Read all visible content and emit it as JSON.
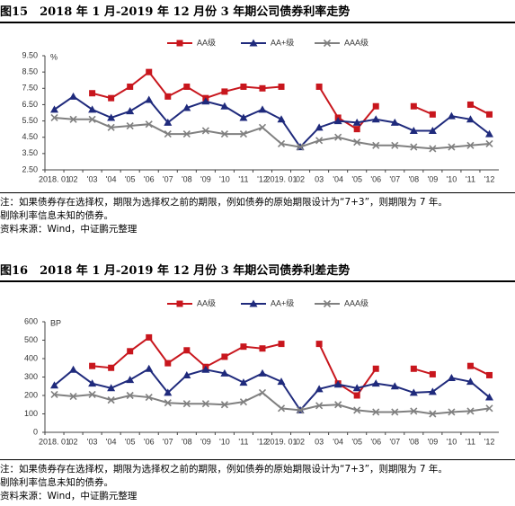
{
  "chart_data": [
    {
      "type": "line",
      "title": "图15　2018 年 1 月-2019 年 12 月份 3 年期公司债券利率走势",
      "unit": "%",
      "categories": [
        "2018. 01",
        "02",
        "'03",
        "'04",
        "'05",
        "'06",
        "'07",
        "'08",
        "'09",
        "'10",
        "'11",
        "'12",
        "2019. 01",
        "02",
        "03",
        "'04",
        "'05",
        "'06",
        "'07",
        "'08",
        "'09",
        "'10",
        "'11",
        "'12"
      ],
      "series": [
        {
          "name": "AA级",
          "color": "#c8161d",
          "marker": "square",
          "values": [
            null,
            null,
            7.2,
            6.9,
            7.6,
            8.5,
            7.0,
            7.6,
            6.9,
            7.3,
            7.6,
            7.5,
            7.6,
            null,
            7.6,
            5.7,
            5.0,
            6.4,
            null,
            6.4,
            5.9,
            null,
            6.5,
            5.9
          ]
        },
        {
          "name": "AA+级",
          "color": "#1f2a7c",
          "marker": "triangle",
          "values": [
            6.2,
            7.0,
            6.2,
            5.7,
            6.1,
            6.8,
            5.4,
            6.3,
            6.7,
            6.4,
            5.7,
            6.2,
            5.6,
            3.9,
            5.1,
            5.5,
            5.4,
            5.6,
            5.4,
            4.9,
            4.9,
            5.8,
            5.6,
            4.7
          ]
        },
        {
          "name": "AAA级",
          "color": "#808080",
          "marker": "x",
          "values": [
            5.7,
            5.6,
            5.6,
            5.1,
            5.2,
            5.3,
            4.7,
            4.7,
            4.9,
            4.7,
            4.7,
            5.1,
            4.1,
            3.9,
            4.3,
            4.5,
            4.2,
            4.0,
            4.0,
            3.9,
            3.8,
            3.9,
            4.0,
            4.1
          ]
        }
      ],
      "ylim": [
        2.5,
        9.5
      ],
      "yticks": [
        {
          "value": 2.5,
          "label": "2.50"
        },
        {
          "value": 3.5,
          "label": "3.50"
        },
        {
          "value": 4.5,
          "label": "4.50"
        },
        {
          "value": 5.5,
          "label": "5.50"
        },
        {
          "value": 6.5,
          "label": "6.50"
        },
        {
          "value": 7.5,
          "label": "7.50"
        },
        {
          "value": 8.5,
          "label": "8.50"
        },
        {
          "value": 9.5,
          "label": "9.50"
        }
      ],
      "grid": false,
      "legend": "top",
      "note": [
        "注：如果债券存在选择权，期限为选择权之前的期限，例如债券的原始期限设计为“7+3”，则期限为 7 年。",
        "剔除利率信息未知的债券。"
      ],
      "source": "资料来源：Wind，中证鹏元整理"
    },
    {
      "type": "line",
      "title": "图16　2018 年 1 月-2019 年 12 月份 3 年期公司债券利差走势",
      "unit": "BP",
      "categories": [
        "2018. 01",
        "02",
        "'03",
        "'04",
        "'05",
        "'06",
        "'07",
        "'08",
        "'09",
        "'10",
        "'11",
        "'12",
        "2019. 01",
        "02",
        "03",
        "'04",
        "'05",
        "'06",
        "'07",
        "'08",
        "'09",
        "'10",
        "'11",
        "'12"
      ],
      "series": [
        {
          "name": "AA级",
          "color": "#c8161d",
          "marker": "square",
          "values": [
            null,
            null,
            360,
            350,
            440,
            515,
            375,
            445,
            355,
            410,
            465,
            455,
            480,
            null,
            480,
            265,
            200,
            345,
            null,
            345,
            315,
            null,
            360,
            310
          ]
        },
        {
          "name": "AA+级",
          "color": "#1f2a7c",
          "marker": "triangle",
          "values": [
            255,
            340,
            265,
            240,
            285,
            345,
            215,
            310,
            340,
            320,
            270,
            320,
            275,
            120,
            235,
            260,
            240,
            265,
            250,
            215,
            220,
            295,
            275,
            190
          ]
        },
        {
          "name": "AAA级",
          "color": "#808080",
          "marker": "x",
          "values": [
            205,
            195,
            205,
            175,
            200,
            190,
            160,
            155,
            155,
            150,
            165,
            215,
            130,
            120,
            145,
            150,
            120,
            110,
            110,
            115,
            100,
            110,
            115,
            130
          ]
        }
      ],
      "ylim": [
        0,
        600
      ],
      "yticks": [
        0,
        100,
        200,
        300,
        400,
        500,
        600
      ],
      "grid": false,
      "legend": "top",
      "note": [
        "注：如果债券存在选择权，期限为选择权之前的期限，例如债券的原始期限设计为“7+3”，则期限为 7 年。",
        "剔除利率信息未知的债券。"
      ],
      "source": "资料来源：Wind，中证鹏元整理"
    }
  ]
}
